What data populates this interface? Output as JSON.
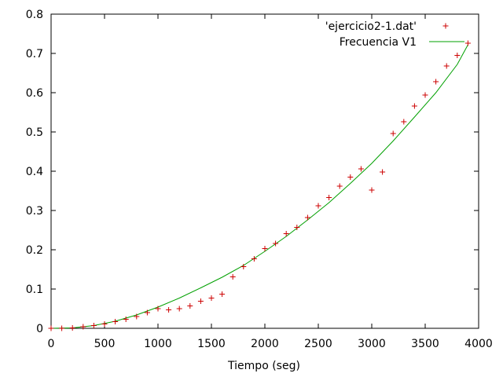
{
  "chart_data": {
    "type": "scatter",
    "title": "",
    "xlabel": "Tiempo (seg)",
    "ylabel": "",
    "xlim": [
      0,
      4000
    ],
    "ylim": [
      0,
      0.8
    ],
    "xticks": [
      "0",
      "500",
      "1000",
      "1500",
      "2000",
      "2500",
      "3000",
      "3500",
      "4000"
    ],
    "yticks": [
      "0",
      "0.1",
      "0.2",
      "0.3",
      "0.4",
      "0.5",
      "0.6",
      "0.7",
      "0.8"
    ],
    "grid": false,
    "legend_position": "top-right",
    "series": [
      {
        "name": "'ejercicio2-1.dat'",
        "kind": "points",
        "marker": "plus",
        "color": "#cc0000",
        "x": [
          0,
          100,
          200,
          300,
          400,
          500,
          600,
          700,
          800,
          900,
          1000,
          1100,
          1200,
          1300,
          1400,
          1500,
          1600,
          1700,
          1800,
          1900,
          2000,
          2100,
          2200,
          2300,
          2400,
          2500,
          2600,
          2700,
          2800,
          2900,
          3000,
          3100,
          3200,
          3300,
          3400,
          3500,
          3600,
          3700,
          3800,
          3900
        ],
        "y": [
          0,
          0,
          0.001,
          0.004,
          0.007,
          0.011,
          0.017,
          0.023,
          0.03,
          0.04,
          0.05,
          0.047,
          0.05,
          0.057,
          0.069,
          0.077,
          0.087,
          0.131,
          0.157,
          0.177,
          0.203,
          0.216,
          0.241,
          0.257,
          0.282,
          0.312,
          0.333,
          0.362,
          0.385,
          0.406,
          0.352,
          0.398,
          0.496,
          0.526,
          0.566,
          0.594,
          0.628,
          0.668,
          0.695,
          0.726
        ]
      },
      {
        "name": "Frecuencia V1",
        "kind": "line",
        "color": "#00a000",
        "x": [
          0,
          200,
          400,
          600,
          800,
          1000,
          1200,
          1400,
          1600,
          1800,
          2000,
          2200,
          2400,
          2600,
          2800,
          3000,
          3200,
          3400,
          3600,
          3800,
          3900
        ],
        "y": [
          0,
          0.001,
          0.007,
          0.018,
          0.034,
          0.054,
          0.077,
          0.103,
          0.13,
          0.16,
          0.196,
          0.234,
          0.276,
          0.32,
          0.369,
          0.42,
          0.477,
          0.538,
          0.6,
          0.672,
          0.722
        ]
      }
    ]
  }
}
